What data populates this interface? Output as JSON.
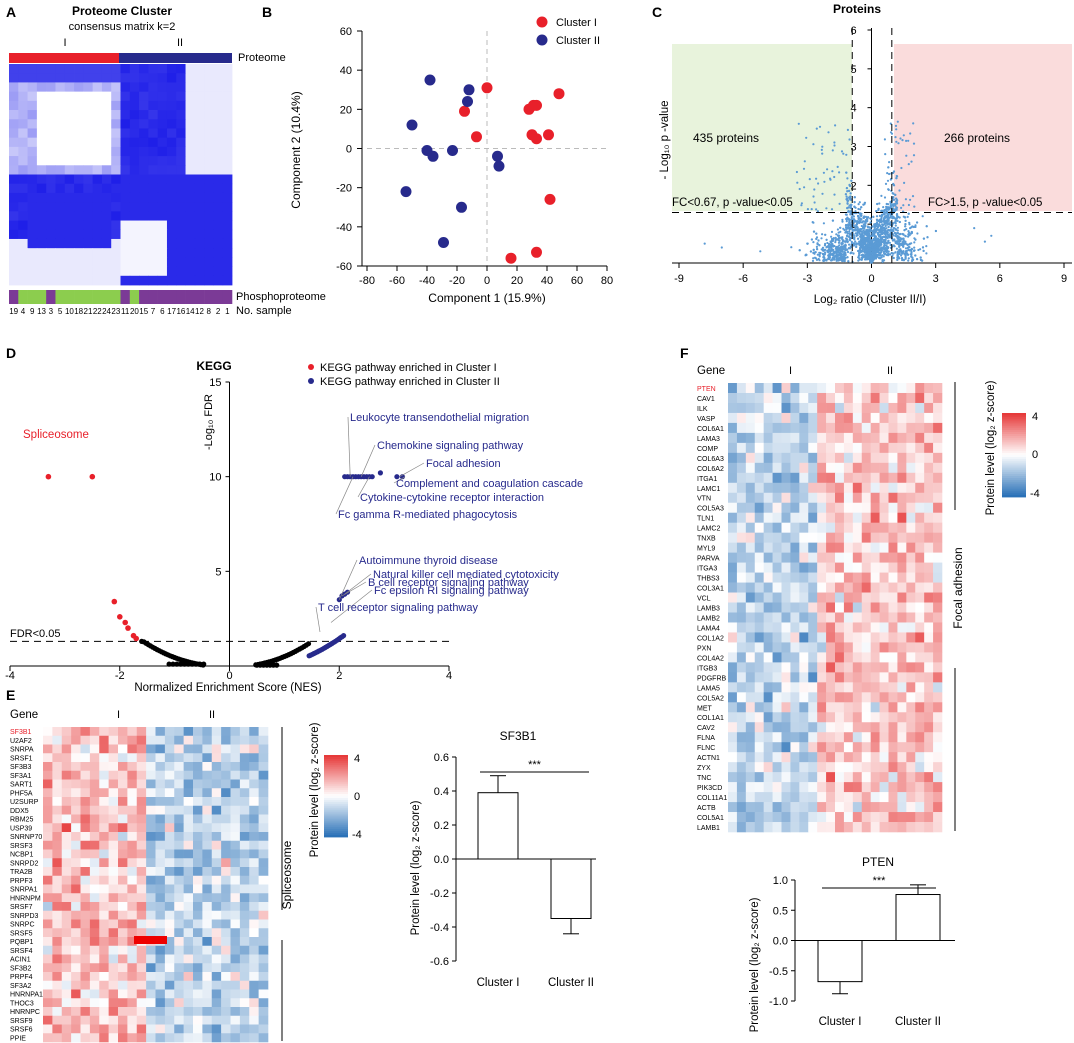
{
  "colors": {
    "red": "#e8202a",
    "navy": "#272a8c",
    "blue": "#1f1fe8",
    "light_blue": "#5b9bd5",
    "green": "#8ccd4e",
    "purple": "#7b3a96",
    "heat_red": "#e63a3a",
    "heat_blue": "#2b72b8"
  },
  "panels": {
    "A": "A",
    "B": "B",
    "C": "C",
    "D": "D",
    "E": "E",
    "F": "F"
  },
  "chart_data": [
    {
      "id": "A",
      "type": "heatmap",
      "title": "Proteome Cluster",
      "subtitle": "consensus matrix k=2",
      "group_labels": [
        "I",
        "II"
      ],
      "row_label_top": "Proteome",
      "row_label_mid": "Phosphoproteome",
      "row_label_bottom": "No. sample",
      "sample_numbers": [
        "19",
        "4",
        "9",
        "13",
        "3",
        "5",
        "10",
        "18",
        "21",
        "22",
        "24",
        "23",
        "11",
        "20",
        "15",
        "7",
        "6",
        "17",
        "16",
        "14",
        "12",
        "8",
        "2",
        "1"
      ],
      "phospho_groups": [
        "p",
        "g",
        "g",
        "g",
        "p",
        "g",
        "g",
        "g",
        "g",
        "g",
        "g",
        "g",
        "p",
        "g",
        "p",
        "p",
        "p",
        "p",
        "p",
        "p",
        "p",
        "p",
        "p",
        "p"
      ],
      "proteome_groups": [
        "I",
        "I",
        "I",
        "I",
        "I",
        "I",
        "I",
        "I",
        "I",
        "I",
        "I",
        "I",
        "II",
        "II",
        "II",
        "II",
        "II",
        "II",
        "II",
        "II",
        "II",
        "II",
        "II",
        "II"
      ]
    },
    {
      "id": "B",
      "type": "scatter",
      "xlabel": "Component 1 (15.9%)",
      "ylabel": "Component 2 (10.4%)",
      "xlim": [
        -80,
        80
      ],
      "ylim": [
        -60,
        60
      ],
      "xticks": [
        "-80",
        "-60",
        "-40",
        "-20",
        "0",
        "20",
        "40",
        "60",
        "80"
      ],
      "yticks": [
        "60",
        "40",
        "20",
        "0",
        "-20",
        "-40",
        "-60"
      ],
      "series": [
        {
          "name": "Cluster I",
          "points": [
            [
              0,
              31
            ],
            [
              -15,
              19
            ],
            [
              -7,
              6
            ],
            [
              28,
              20
            ],
            [
              31,
              22
            ],
            [
              33,
              22
            ],
            [
              48,
              28
            ],
            [
              30,
              7
            ],
            [
              33,
              5
            ],
            [
              41,
              7
            ],
            [
              42,
              -26
            ],
            [
              33,
              -53
            ],
            [
              16,
              -56
            ]
          ]
        },
        {
          "name": "Cluster II",
          "points": [
            [
              -38,
              35
            ],
            [
              -12,
              30
            ],
            [
              -13,
              24
            ],
            [
              -50,
              12
            ],
            [
              -40,
              -1
            ],
            [
              -36,
              -4
            ],
            [
              -23,
              -1
            ],
            [
              7,
              -4
            ],
            [
              8,
              -9
            ],
            [
              -54,
              -22
            ],
            [
              -17,
              -30
            ],
            [
              -29,
              -48
            ]
          ]
        }
      ]
    },
    {
      "id": "C",
      "type": "scatter",
      "title": "Proteins",
      "xlabel": "Log₂ ratio (Cluster II/I)",
      "ylabel": "- Log₁₀ p -value",
      "xlim": [
        -9,
        9
      ],
      "ylim": [
        0,
        6
      ],
      "xticks": [
        "-9",
        "-6",
        "-3",
        "0",
        "3",
        "6",
        "9"
      ],
      "yticks": [
        "1",
        "2",
        "3",
        "4",
        "5",
        "6"
      ],
      "left_count": "435 proteins",
      "right_count": "266 proteins",
      "left_threshold": "FC<0.67, p -value<0.05",
      "right_threshold": "FC>1.5, p -value<0.05",
      "fc_cutoffs": [
        -0.58,
        0.58
      ],
      "p_cutoff": 1.3
    },
    {
      "id": "D",
      "type": "scatter",
      "title": "KEGG",
      "xlabel": "Normalized Enrichment Score (NES)",
      "ylabel": "-Log₁₀ FDR",
      "xlim": [
        -4,
        4
      ],
      "ylim": [
        0,
        15
      ],
      "xticks": [
        "-4",
        "-2",
        "0",
        "2",
        "4"
      ],
      "yticks": [
        "5",
        "10",
        "15"
      ],
      "fdr_line_label": "FDR<0.05",
      "fdr_line_value": 1.3,
      "legend": [
        "KEGG pathway enriched in Cluster I",
        "KEGG pathway enriched in Cluster II"
      ],
      "highlight_left": [
        {
          "label": "Spliceosome",
          "x": -3.3,
          "y": 10
        },
        {
          "label": "",
          "x": -2.5,
          "y": 10
        }
      ],
      "annotations": [
        {
          "label": "Leukocyte transendothelial migration",
          "x": 2.1,
          "y": 10
        },
        {
          "label": "Chemokine signaling pathway",
          "x": 2.3,
          "y": 10
        },
        {
          "label": "Focal adhesion",
          "x": 3.1,
          "y": 10
        },
        {
          "label": "Complement and coagulation cascade",
          "x": 3.2,
          "y": 10
        },
        {
          "label": "Cytokine-cytokine receptor interaction",
          "x": 2.5,
          "y": 10
        },
        {
          "label": "Fc gamma R-mediated phagocytosis",
          "x": 2.2,
          "y": 10
        },
        {
          "label": "Autoimmune thyroid disease",
          "x": 2.0,
          "y": 3.5
        },
        {
          "label": "B cell receptor signaling pathway",
          "x": 2.05,
          "y": 3.7
        },
        {
          "label": "Natural killer cell mediated cytotoxicity",
          "x": 2.1,
          "y": 3.8
        },
        {
          "label": "Fc epsilon RI signaling pathway",
          "x": 1.8,
          "y": 2.3
        },
        {
          "label": "T cell receptor signaling pathway",
          "x": 1.6,
          "y": 1.8
        }
      ],
      "red_points": [
        [
          -3.3,
          10
        ],
        [
          -2.5,
          10
        ],
        [
          -2.1,
          3.4
        ],
        [
          -2.0,
          2.6
        ],
        [
          -1.9,
          2.3
        ],
        [
          -1.85,
          2.0
        ],
        [
          -1.75,
          1.6
        ],
        [
          -1.7,
          1.45
        ]
      ]
    },
    {
      "id": "E",
      "type": "heatmap",
      "gene_header": "Gene",
      "group_labels": [
        "I",
        "II"
      ],
      "side_label": "Spliceosome",
      "scale_title": "Protein level (log₂ z-score)",
      "scale_ticks": [
        "4",
        "0",
        "-4"
      ],
      "genes": [
        "SF3B1",
        "U2AF2",
        "SNRPA",
        "SRSF1",
        "SF3B3",
        "SF3A1",
        "SART1",
        "PHF5A",
        "U2SURP",
        "DDX5",
        "RBM25",
        "USP39",
        "SNRNP70",
        "SRSF3",
        "NCBP1",
        "SNRPD2",
        "TRA2B",
        "PRPF3",
        "SNRPA1",
        "HNRNPM",
        "SRSF7",
        "SNRPD3",
        "SNRPC",
        "SRSF5",
        "PQBP1",
        "SRSF4",
        "ACIN1",
        "SF3B2",
        "PRPF4",
        "SF3A2",
        "HNRNPA1",
        "THOC3",
        "HNRNPC",
        "SRSF9",
        "SRSF6",
        "PPIE"
      ],
      "highlight_gene": "SF3B1"
    },
    {
      "id": "E2",
      "type": "bar",
      "title": "SF3B1",
      "categories": [
        "Cluster I",
        "Cluster II"
      ],
      "values": [
        0.39,
        -0.35
      ],
      "errors": [
        0.1,
        0.09
      ],
      "ylabel": "Protein level (log₂ z-score)",
      "ylim": [
        -0.6,
        0.6
      ],
      "yticks": [
        "0.6",
        "0.4",
        "0.2",
        "0.0",
        "-0.2",
        "-0.4",
        "-0.6"
      ],
      "significance": "***"
    },
    {
      "id": "F",
      "type": "heatmap",
      "gene_header": "Gene",
      "group_labels": [
        "I",
        "II"
      ],
      "side_label": "Focal adhesion",
      "scale_title": "Protein level (log₂ z-score)",
      "scale_ticks": [
        "4",
        "0",
        "-4"
      ],
      "genes": [
        "PTEN",
        "CAV1",
        "ILK",
        "VASP",
        "COL6A1",
        "LAMA3",
        "COMP",
        "COL6A3",
        "COL6A2",
        "ITGA1",
        "LAMC1",
        "VTN",
        "COL5A3",
        "TLN1",
        "LAMC2",
        "TNXB",
        "MYL9",
        "PARVA",
        "ITGA3",
        "THBS3",
        "COL3A1",
        "VCL",
        "LAMB3",
        "LAMB2",
        "LAMA4",
        "COL1A2",
        "PXN",
        "COL4A2",
        "ITGB3",
        "PDGFRB",
        "LAMA5",
        "COL5A2",
        "MET",
        "COL1A1",
        "CAV2",
        "FLNA",
        "FLNC",
        "ACTN1",
        "ZYX",
        "TNC",
        "PIK3CD",
        "COL11A1",
        "ACTB",
        "COL5A1",
        "LAMB1"
      ],
      "highlight_gene": "PTEN"
    },
    {
      "id": "F2",
      "type": "bar",
      "title": "PTEN",
      "categories": [
        "Cluster I",
        "Cluster II"
      ],
      "values": [
        -0.68,
        0.76
      ],
      "errors": [
        0.2,
        0.16
      ],
      "ylabel": "Protein level (log₂ z-score)",
      "ylim": [
        -1.0,
        1.0
      ],
      "yticks": [
        "1.0",
        "0.5",
        "0.0",
        "-0.5",
        "-1.0"
      ],
      "significance": "***"
    }
  ]
}
